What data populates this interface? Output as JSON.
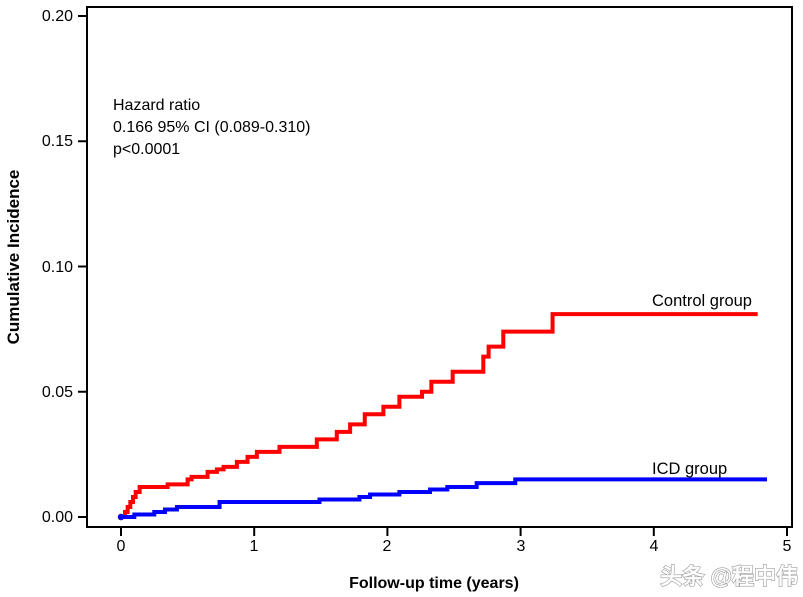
{
  "chart_data": {
    "type": "line",
    "subtype": "step",
    "title": "",
    "xlabel": "Follow-up time (years)",
    "ylabel": "Cumulative Incidence",
    "xlim": [
      0,
      5
    ],
    "ylim": [
      0,
      0.2
    ],
    "grid": false,
    "x_ticks": [
      0,
      1,
      2,
      3,
      4,
      5
    ],
    "x_tick_labels": [
      "0",
      "1",
      "2",
      "3",
      "4",
      "5"
    ],
    "y_ticks": [
      0,
      0.05,
      0.1,
      0.15,
      0.2
    ],
    "y_tick_labels": [
      "0.00",
      "0.05",
      "0.10",
      "0.15",
      "0.20"
    ],
    "annotation": {
      "line1": "Hazard ratio",
      "line2": "0.166 95% CI (0.089-0.310)",
      "line3": "p<0.0001"
    },
    "legend_position": "inline-right-labels",
    "series": [
      {
        "name": "Control group",
        "color": "#ff0000",
        "x": [
          0,
          0.03,
          0.05,
          0.07,
          0.09,
          0.11,
          0.14,
          0.35,
          0.5,
          0.53,
          0.65,
          0.72,
          0.77,
          0.87,
          0.95,
          1.02,
          1.19,
          1.47,
          1.62,
          1.72,
          1.83,
          1.97,
          2.09,
          2.26,
          2.33,
          2.49,
          2.72,
          2.76,
          2.87,
          3.24,
          4.78
        ],
        "y": [
          0,
          0.002,
          0.004,
          0.006,
          0.008,
          0.01,
          0.012,
          0.013,
          0.015,
          0.016,
          0.018,
          0.019,
          0.02,
          0.022,
          0.024,
          0.026,
          0.028,
          0.031,
          0.034,
          0.037,
          0.041,
          0.044,
          0.048,
          0.05,
          0.054,
          0.058,
          0.064,
          0.068,
          0.074,
          0.081,
          0.081
        ]
      },
      {
        "name": "ICD group",
        "color": "#0000ff",
        "x": [
          0,
          0.1,
          0.25,
          0.33,
          0.42,
          0.74,
          1.49,
          1.79,
          1.87,
          2.09,
          2.32,
          2.45,
          2.67,
          2.96,
          4.85
        ],
        "y": [
          0,
          0.001,
          0.002,
          0.003,
          0.004,
          0.006,
          0.007,
          0.008,
          0.009,
          0.01,
          0.011,
          0.012,
          0.0135,
          0.015,
          0.015
        ]
      }
    ]
  },
  "watermark": "头条 @程中伟",
  "colors": {
    "control_series": "#ff0000",
    "icd_series": "#0000ff",
    "axis": "#000000",
    "background": "#ffffff"
  }
}
